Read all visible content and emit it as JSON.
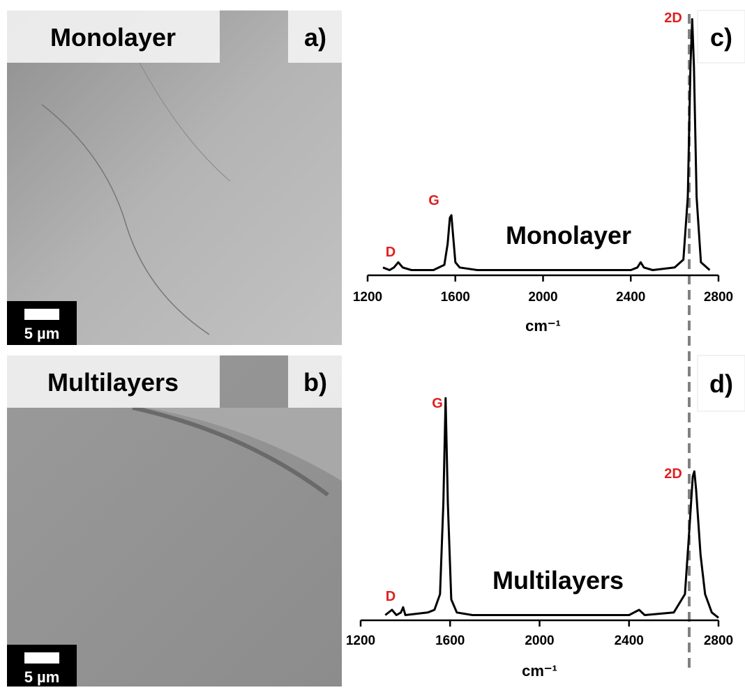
{
  "images": [
    {
      "label": "Monolayer",
      "panel": "a)",
      "scale_bar": "5 µm"
    },
    {
      "label": "Multilayers",
      "panel": "b)",
      "scale_bar": "5 µm"
    }
  ],
  "chart_data": [
    {
      "type": "line",
      "panel": "c)",
      "text": "Monolayer",
      "xlabel": "cm⁻¹",
      "color": "#000000",
      "annotations": [
        "D",
        "G",
        "2D"
      ],
      "x": [
        1270,
        1300,
        1320,
        1340,
        1360,
        1400,
        1500,
        1550,
        1565,
        1575,
        1582,
        1590,
        1600,
        1620,
        1700,
        2000,
        2400,
        2430,
        2445,
        2460,
        2500,
        2600,
        2640,
        2660,
        2672,
        2680,
        2688,
        2700,
        2720,
        2760
      ],
      "values": [
        3,
        2,
        3,
        5,
        3,
        2,
        2,
        4,
        12,
        22,
        23,
        15,
        5,
        3,
        2,
        2,
        2,
        3,
        5,
        3,
        2,
        3,
        6,
        30,
        80,
        98,
        80,
        30,
        5,
        2
      ],
      "xlim": [
        1200,
        2800
      ],
      "xticks": [
        1200,
        1600,
        2000,
        2400,
        2800
      ],
      "ylim": [
        0,
        100
      ]
    },
    {
      "type": "line",
      "panel": "d)",
      "text": "Multilayers",
      "xlabel": "cm⁻¹",
      "color": "#000000",
      "annotations": [
        "D",
        "G",
        "2D"
      ],
      "x": [
        1310,
        1340,
        1360,
        1380,
        1390,
        1400,
        1500,
        1530,
        1555,
        1570,
        1580,
        1590,
        1605,
        1630,
        1700,
        2000,
        2400,
        2445,
        2470,
        2600,
        2650,
        2670,
        2685,
        2692,
        2700,
        2720,
        2740,
        2770,
        2800
      ],
      "values": [
        2,
        4,
        2,
        3,
        5,
        2,
        3,
        4,
        10,
        45,
        85,
        45,
        8,
        3,
        2,
        2,
        2,
        4,
        2,
        3,
        10,
        35,
        55,
        57,
        50,
        25,
        10,
        3,
        1
      ],
      "xlim": [
        1200,
        2800
      ],
      "xticks": [
        1200,
        1600,
        2000,
        2400,
        2800
      ],
      "ylim": [
        0,
        100
      ]
    }
  ]
}
